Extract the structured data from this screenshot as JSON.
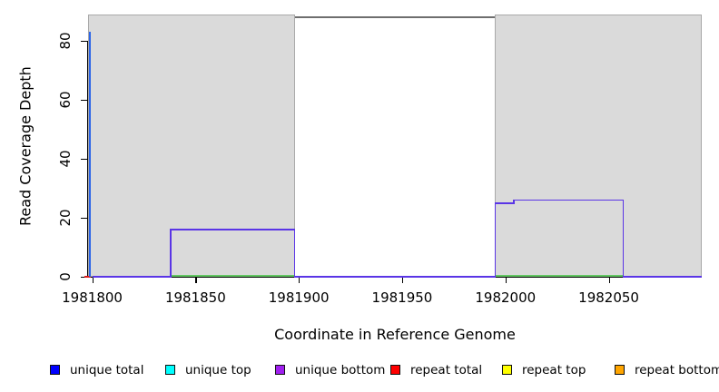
{
  "chart_data": {
    "type": "line",
    "title": "",
    "xlabel": "Coordinate in Reference Genome",
    "ylabel": "Read Coverage Depth",
    "xlim": [
      1981798,
      1982095
    ],
    "ylim": [
      0,
      88.3
    ],
    "x_ticks": [
      1981800,
      1981850,
      1981900,
      1981950,
      1982000,
      1982050
    ],
    "y_ticks": [
      0,
      20,
      40,
      60,
      80
    ],
    "grid": false,
    "shaded_regions": [
      {
        "x1": 1981798,
        "x2": 1981898
      },
      {
        "x1": 1981995,
        "x2": 1982095
      }
    ],
    "region_fill": "#dadada",
    "region_border": "#a9a9a9",
    "gap_top_line_color": "#6e6e6e",
    "series": [
      {
        "id": "repeat-total",
        "name": "repeat total baseline",
        "color": "#e01b1b",
        "type": "hline",
        "y": 0,
        "x1": 1981796.4,
        "x2": 1981799.4
      },
      {
        "id": "unique-total-spike",
        "name": "unique total spike",
        "color": "#2e66e8",
        "type": "vline",
        "x": 1981799,
        "y1": 0,
        "y2": 83
      },
      {
        "id": "unique-top",
        "name": "unique top baseline",
        "color": "#63c763",
        "type": "hline-multi",
        "y": 0,
        "segments": [
          [
            1981838,
            1981898
          ],
          [
            1981995,
            1982057
          ]
        ]
      },
      {
        "id": "unique-bottom",
        "name": "unique bottom coverage",
        "color": "#5a35e6",
        "type": "step",
        "points": [
          [
            1981800,
            0
          ],
          [
            1981838,
            0
          ],
          [
            1981838,
            16
          ],
          [
            1981898,
            16
          ],
          [
            1981898,
            0
          ],
          [
            1981995,
            0
          ],
          [
            1981995,
            25
          ],
          [
            1982004,
            25
          ],
          [
            1982004,
            26
          ],
          [
            1982057,
            26
          ],
          [
            1982057,
            0
          ],
          [
            1982095,
            0
          ]
        ]
      }
    ]
  },
  "legend": {
    "items": [
      {
        "label": "unique total",
        "color": "#0000ff"
      },
      {
        "label": "unique top",
        "color": "#00ffff"
      },
      {
        "label": "unique bottom",
        "color": "#a020f0"
      },
      {
        "label": "repeat total",
        "color": "#ff0000"
      },
      {
        "label": "repeat top",
        "color": "#ffff00"
      },
      {
        "label": "repeat bottom",
        "color": "#ffa500"
      }
    ]
  }
}
